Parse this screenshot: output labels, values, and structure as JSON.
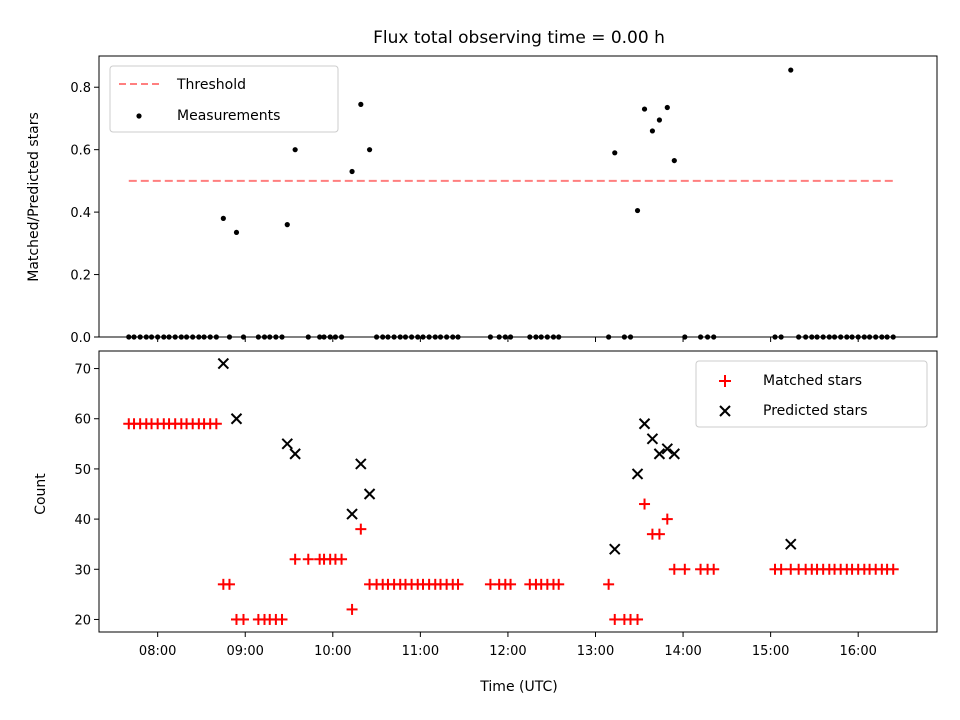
{
  "colors": {
    "threshold": "#ff7f7f",
    "measurement": "#000000",
    "matched": "#ff0000",
    "predicted": "#000000"
  },
  "chart_data": [
    {
      "type": "scatter",
      "title": "Flux total observing time = 0.00 h",
      "xlabel": "",
      "ylabel": "Matched/Predicted stars",
      "xlim": [
        7.33,
        16.9
      ],
      "ylim": [
        0,
        0.9
      ],
      "yticks": [
        0.0,
        0.2,
        0.4,
        0.6,
        0.8
      ],
      "ytick_labels": [
        "0.0",
        "0.2",
        "0.4",
        "0.6",
        "0.8"
      ],
      "legend_position": "top-left",
      "series": [
        {
          "name": "Threshold",
          "kind": "dashed-line",
          "x": [
            7.67,
            16.43
          ],
          "y": [
            0.5,
            0.5
          ]
        },
        {
          "name": "Measurements",
          "kind": "dot",
          "points": [
            [
              7.67,
              0
            ],
            [
              7.73,
              0
            ],
            [
              7.8,
              0
            ],
            [
              7.87,
              0
            ],
            [
              7.93,
              0
            ],
            [
              8.0,
              0
            ],
            [
              8.07,
              0
            ],
            [
              8.13,
              0
            ],
            [
              8.2,
              0
            ],
            [
              8.27,
              0
            ],
            [
              8.33,
              0
            ],
            [
              8.4,
              0
            ],
            [
              8.47,
              0
            ],
            [
              8.53,
              0
            ],
            [
              8.6,
              0
            ],
            [
              8.67,
              0
            ],
            [
              8.75,
              0.38
            ],
            [
              8.82,
              0
            ],
            [
              8.9,
              0.335
            ],
            [
              8.98,
              0
            ],
            [
              9.15,
              0
            ],
            [
              9.22,
              0
            ],
            [
              9.28,
              0
            ],
            [
              9.35,
              0
            ],
            [
              9.42,
              0
            ],
            [
              9.48,
              0.36
            ],
            [
              9.57,
              0.6
            ],
            [
              9.72,
              0
            ],
            [
              9.85,
              0
            ],
            [
              9.9,
              0
            ],
            [
              9.97,
              0
            ],
            [
              10.03,
              0
            ],
            [
              10.1,
              0
            ],
            [
              10.22,
              0.53
            ],
            [
              10.32,
              0.745
            ],
            [
              10.42,
              0.6
            ],
            [
              10.5,
              0
            ],
            [
              10.57,
              0
            ],
            [
              10.63,
              0
            ],
            [
              10.7,
              0
            ],
            [
              10.77,
              0
            ],
            [
              10.83,
              0
            ],
            [
              10.9,
              0
            ],
            [
              10.97,
              0
            ],
            [
              11.03,
              0
            ],
            [
              11.1,
              0
            ],
            [
              11.17,
              0
            ],
            [
              11.23,
              0
            ],
            [
              11.3,
              0
            ],
            [
              11.37,
              0
            ],
            [
              11.43,
              0
            ],
            [
              11.8,
              0
            ],
            [
              11.9,
              0
            ],
            [
              11.97,
              0
            ],
            [
              12.03,
              0
            ],
            [
              12.25,
              0
            ],
            [
              12.32,
              0
            ],
            [
              12.38,
              0
            ],
            [
              12.45,
              0
            ],
            [
              12.52,
              0
            ],
            [
              12.58,
              0
            ],
            [
              13.15,
              0
            ],
            [
              13.22,
              0.59
            ],
            [
              13.33,
              0
            ],
            [
              13.4,
              0
            ],
            [
              13.48,
              0.405
            ],
            [
              13.56,
              0.73
            ],
            [
              13.65,
              0.66
            ],
            [
              13.73,
              0.695
            ],
            [
              13.82,
              0.735
            ],
            [
              13.9,
              0.565
            ],
            [
              14.02,
              0
            ],
            [
              14.2,
              0
            ],
            [
              14.28,
              0
            ],
            [
              14.35,
              0
            ],
            [
              15.05,
              0
            ],
            [
              15.12,
              0
            ],
            [
              15.23,
              0.855
            ],
            [
              15.32,
              0
            ],
            [
              15.4,
              0
            ],
            [
              15.47,
              0
            ],
            [
              15.53,
              0
            ],
            [
              15.6,
              0
            ],
            [
              15.67,
              0
            ],
            [
              15.73,
              0
            ],
            [
              15.8,
              0
            ],
            [
              15.87,
              0
            ],
            [
              15.93,
              0
            ],
            [
              16.0,
              0
            ],
            [
              16.07,
              0
            ],
            [
              16.13,
              0
            ],
            [
              16.2,
              0
            ],
            [
              16.27,
              0
            ],
            [
              16.33,
              0
            ],
            [
              16.4,
              0
            ]
          ]
        }
      ]
    },
    {
      "type": "scatter",
      "title": "",
      "xlabel": "Time (UTC)",
      "ylabel": "Count",
      "xlim": [
        7.33,
        16.9
      ],
      "ylim": [
        17.5,
        73.5
      ],
      "xticks": [
        8,
        9,
        10,
        11,
        12,
        13,
        14,
        15,
        16
      ],
      "xtick_labels": [
        "08:00",
        "09:00",
        "10:00",
        "11:00",
        "12:00",
        "13:00",
        "14:00",
        "15:00",
        "16:00"
      ],
      "yticks": [
        20,
        30,
        40,
        50,
        60,
        70
      ],
      "ytick_labels": [
        "20",
        "30",
        "40",
        "50",
        "60",
        "70"
      ],
      "legend_position": "top-right",
      "series": [
        {
          "name": "Matched stars",
          "kind": "plus",
          "points": [
            [
              7.67,
              59
            ],
            [
              7.73,
              59
            ],
            [
              7.8,
              59
            ],
            [
              7.87,
              59
            ],
            [
              7.93,
              59
            ],
            [
              8.0,
              59
            ],
            [
              8.07,
              59
            ],
            [
              8.13,
              59
            ],
            [
              8.2,
              59
            ],
            [
              8.27,
              59
            ],
            [
              8.33,
              59
            ],
            [
              8.4,
              59
            ],
            [
              8.47,
              59
            ],
            [
              8.53,
              59
            ],
            [
              8.6,
              59
            ],
            [
              8.67,
              59
            ],
            [
              8.75,
              27
            ],
            [
              8.82,
              27
            ],
            [
              8.9,
              20
            ],
            [
              8.98,
              20
            ],
            [
              9.15,
              20
            ],
            [
              9.22,
              20
            ],
            [
              9.28,
              20
            ],
            [
              9.35,
              20
            ],
            [
              9.42,
              20
            ],
            [
              9.57,
              32
            ],
            [
              9.72,
              32
            ],
            [
              9.85,
              32
            ],
            [
              9.9,
              32
            ],
            [
              9.97,
              32
            ],
            [
              10.03,
              32
            ],
            [
              10.1,
              32
            ],
            [
              10.22,
              22
            ],
            [
              10.32,
              38
            ],
            [
              10.42,
              27
            ],
            [
              10.5,
              27
            ],
            [
              10.57,
              27
            ],
            [
              10.63,
              27
            ],
            [
              10.7,
              27
            ],
            [
              10.77,
              27
            ],
            [
              10.83,
              27
            ],
            [
              10.9,
              27
            ],
            [
              10.97,
              27
            ],
            [
              11.03,
              27
            ],
            [
              11.1,
              27
            ],
            [
              11.17,
              27
            ],
            [
              11.23,
              27
            ],
            [
              11.3,
              27
            ],
            [
              11.37,
              27
            ],
            [
              11.43,
              27
            ],
            [
              11.8,
              27
            ],
            [
              11.9,
              27
            ],
            [
              11.97,
              27
            ],
            [
              12.03,
              27
            ],
            [
              12.25,
              27
            ],
            [
              12.32,
              27
            ],
            [
              12.38,
              27
            ],
            [
              12.45,
              27
            ],
            [
              12.52,
              27
            ],
            [
              12.58,
              27
            ],
            [
              13.15,
              27
            ],
            [
              13.22,
              20
            ],
            [
              13.33,
              20
            ],
            [
              13.4,
              20
            ],
            [
              13.48,
              20
            ],
            [
              13.56,
              43
            ],
            [
              13.65,
              37
            ],
            [
              13.73,
              37
            ],
            [
              13.82,
              40
            ],
            [
              13.9,
              30
            ],
            [
              14.02,
              30
            ],
            [
              14.2,
              30
            ],
            [
              14.28,
              30
            ],
            [
              14.35,
              30
            ],
            [
              15.05,
              30
            ],
            [
              15.12,
              30
            ],
            [
              15.23,
              30
            ],
            [
              15.32,
              30
            ],
            [
              15.4,
              30
            ],
            [
              15.47,
              30
            ],
            [
              15.53,
              30
            ],
            [
              15.6,
              30
            ],
            [
              15.67,
              30
            ],
            [
              15.73,
              30
            ],
            [
              15.8,
              30
            ],
            [
              15.87,
              30
            ],
            [
              15.93,
              30
            ],
            [
              16.0,
              30
            ],
            [
              16.07,
              30
            ],
            [
              16.13,
              30
            ],
            [
              16.2,
              30
            ],
            [
              16.27,
              30
            ],
            [
              16.33,
              30
            ],
            [
              16.4,
              30
            ]
          ]
        },
        {
          "name": "Predicted stars",
          "kind": "x",
          "points": [
            [
              8.75,
              71
            ],
            [
              8.9,
              60
            ],
            [
              9.48,
              55
            ],
            [
              9.57,
              53
            ],
            [
              10.22,
              41
            ],
            [
              10.32,
              51
            ],
            [
              10.42,
              45
            ],
            [
              13.22,
              34
            ],
            [
              13.48,
              49
            ],
            [
              13.56,
              59
            ],
            [
              13.65,
              56
            ],
            [
              13.73,
              53
            ],
            [
              13.82,
              54
            ],
            [
              13.9,
              53
            ],
            [
              15.23,
              35
            ]
          ]
        }
      ]
    }
  ]
}
